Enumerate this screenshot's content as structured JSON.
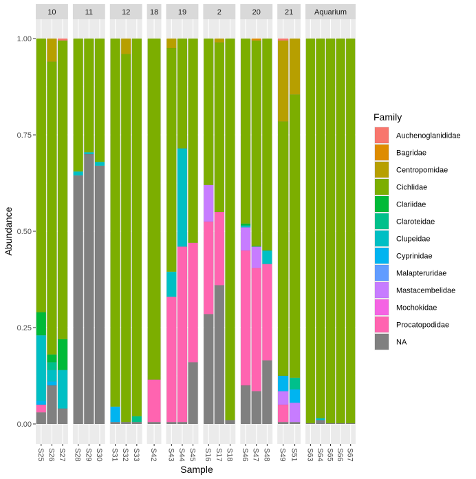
{
  "chart_data": {
    "type": "bar",
    "stacked": true,
    "xlabel": "Sample",
    "ylabel": "Abundance",
    "ylim": [
      0,
      1
    ],
    "yticks": [
      "0.00",
      "0.25",
      "0.50",
      "0.75",
      "1.00"
    ],
    "grid": true,
    "legend": {
      "title": "Family",
      "position": "right",
      "entries": [
        {
          "name": "Auchenoglanididae",
          "color": "#F8766D"
        },
        {
          "name": "Bagridae",
          "color": "#DE8C00"
        },
        {
          "name": "Centropomidae",
          "color": "#B79F00"
        },
        {
          "name": "Cichlidae",
          "color": "#7CAE00"
        },
        {
          "name": "Clariidae",
          "color": "#00BA38"
        },
        {
          "name": "Claroteidae",
          "color": "#00C08B"
        },
        {
          "name": "Clupeidae",
          "color": "#00BFC4"
        },
        {
          "name": "Cyprinidae",
          "color": "#00B4F0"
        },
        {
          "name": "Malapteruridae",
          "color": "#619CFF"
        },
        {
          "name": "Mastacembelidae",
          "color": "#C77CFF"
        },
        {
          "name": "Mochokidae",
          "color": "#F564E3"
        },
        {
          "name": "Procatopodidae",
          "color": "#FF64B0"
        },
        {
          "name": "NA",
          "color": "#808080"
        }
      ]
    },
    "panels": [
      {
        "label": "10",
        "samples": [
          {
            "name": "S25",
            "values": {
              "NA": 0.03,
              "Procatopodidae": 0.02,
              "Cyprinidae": 0.01,
              "Clupeidae": 0.17,
              "Clariidae": 0.06,
              "Cichlidae": 0.71
            }
          },
          {
            "name": "S26",
            "values": {
              "NA": 0.1,
              "Cyprinidae": 0.01,
              "Clupeidae": 0.03,
              "Claroteidae": 0.02,
              "Clariidae": 0.02,
              "Cichlidae": 0.76,
              "Centropomidae": 0.06
            }
          },
          {
            "name": "S27",
            "values": {
              "NA": 0.04,
              "Clupeidae": 0.1,
              "Clariidae": 0.08,
              "Cichlidae": 0.775,
              "Auchenoglanididae": 0.005
            }
          }
        ]
      },
      {
        "label": "11",
        "samples": [
          {
            "name": "S28",
            "values": {
              "NA": 0.645,
              "Clupeidae": 0.01,
              "Cichlidae": 0.345
            }
          },
          {
            "name": "S29",
            "values": {
              "NA": 0.7,
              "Clupeidae": 0.005,
              "Cichlidae": 0.295
            }
          },
          {
            "name": "S30",
            "values": {
              "NA": 0.67,
              "Clupeidae": 0.01,
              "Cichlidae": 0.32
            }
          }
        ]
      },
      {
        "label": "12",
        "samples": [
          {
            "name": "S31",
            "values": {
              "NA": 0.005,
              "Cyprinidae": 0.04,
              "Cichlidae": 0.955
            }
          },
          {
            "name": "S32",
            "values": {
              "NA": 0.005,
              "Cichlidae": 0.955,
              "Centropomidae": 0.04
            }
          },
          {
            "name": "S33",
            "values": {
              "NA": 0.005,
              "Claroteidae": 0.015,
              "Cichlidae": 0.98
            }
          }
        ]
      },
      {
        "label": "18",
        "samples": [
          {
            "name": "S42",
            "values": {
              "NA": 0.005,
              "Procatopodidae": 0.11,
              "Cichlidae": 0.885
            }
          }
        ]
      },
      {
        "label": "19",
        "samples": [
          {
            "name": "S43",
            "values": {
              "NA": 0.005,
              "Procatopodidae": 0.325,
              "Clupeidae": 0.065,
              "Cichlidae": 0.58,
              "Centropomidae": 0.025
            }
          },
          {
            "name": "S44",
            "values": {
              "NA": 0.005,
              "Procatopodidae": 0.455,
              "Clupeidae": 0.255,
              "Cichlidae": 0.285
            }
          },
          {
            "name": "S45",
            "values": {
              "NA": 0.16,
              "Procatopodidae": 0.31,
              "Cichlidae": 0.53
            }
          }
        ]
      },
      {
        "label": "2",
        "samples": [
          {
            "name": "S16",
            "values": {
              "NA": 0.285,
              "Procatopodidae": 0.24,
              "Mastacembelidae": 0.095,
              "Cichlidae": 0.38
            }
          },
          {
            "name": "S17",
            "values": {
              "NA": 0.36,
              "Procatopodidae": 0.19,
              "Cichlidae": 0.44,
              "Centropomidae": 0.01
            }
          },
          {
            "name": "S18",
            "values": {
              "NA": 0.01,
              "Cichlidae": 0.99
            }
          }
        ]
      },
      {
        "label": "20",
        "samples": [
          {
            "name": "S46",
            "values": {
              "NA": 0.1,
              "Procatopodidae": 0.35,
              "Mastacembelidae": 0.06,
              "Clupeidae": 0.005,
              "Clariidae": 0.005,
              "Cichlidae": 0.48
            }
          },
          {
            "name": "S47",
            "values": {
              "NA": 0.085,
              "Procatopodidae": 0.32,
              "Mastacembelidae": 0.055,
              "Clariidae": 0.002,
              "Cichlidae": 0.533,
              "Bagridae": 0.005
            }
          },
          {
            "name": "S48",
            "values": {
              "NA": 0.165,
              "Procatopodidae": 0.25,
              "Clupeidae": 0.035,
              "Cichlidae": 0.55
            }
          }
        ]
      },
      {
        "label": "21",
        "samples": [
          {
            "name": "S49",
            "values": {
              "NA": 0.005,
              "Procatopodidae": 0.045,
              "Mastacembelidae": 0.035,
              "Cyprinidae": 0.04,
              "Cichlidae": 0.66,
              "Centropomidae": 0.21,
              "Auchenoglanididae": 0.005
            }
          },
          {
            "name": "S51",
            "values": {
              "NA": 0.005,
              "Mastacembelidae": 0.05,
              "Cyprinidae": 0.035,
              "Claroteidae": 0.03,
              "Cichlidae": 0.735,
              "Centropomidae": 0.145
            }
          }
        ]
      },
      {
        "label": "Aquarium",
        "samples": [
          {
            "name": "S63",
            "values": {
              "NA": 0.002,
              "Cichlidae": 0.998
            }
          },
          {
            "name": "S64",
            "values": {
              "NA": 0.01,
              "Clupeidae": 0.005,
              "Cichlidae": 0.985
            }
          },
          {
            "name": "S65",
            "values": {
              "NA": 0.002,
              "Cichlidae": 0.998
            }
          },
          {
            "name": "S66",
            "values": {
              "NA": 0.002,
              "Cichlidae": 0.998
            }
          },
          {
            "name": "S67",
            "values": {
              "NA": 0.002,
              "Cichlidae": 0.998
            }
          }
        ]
      }
    ]
  }
}
